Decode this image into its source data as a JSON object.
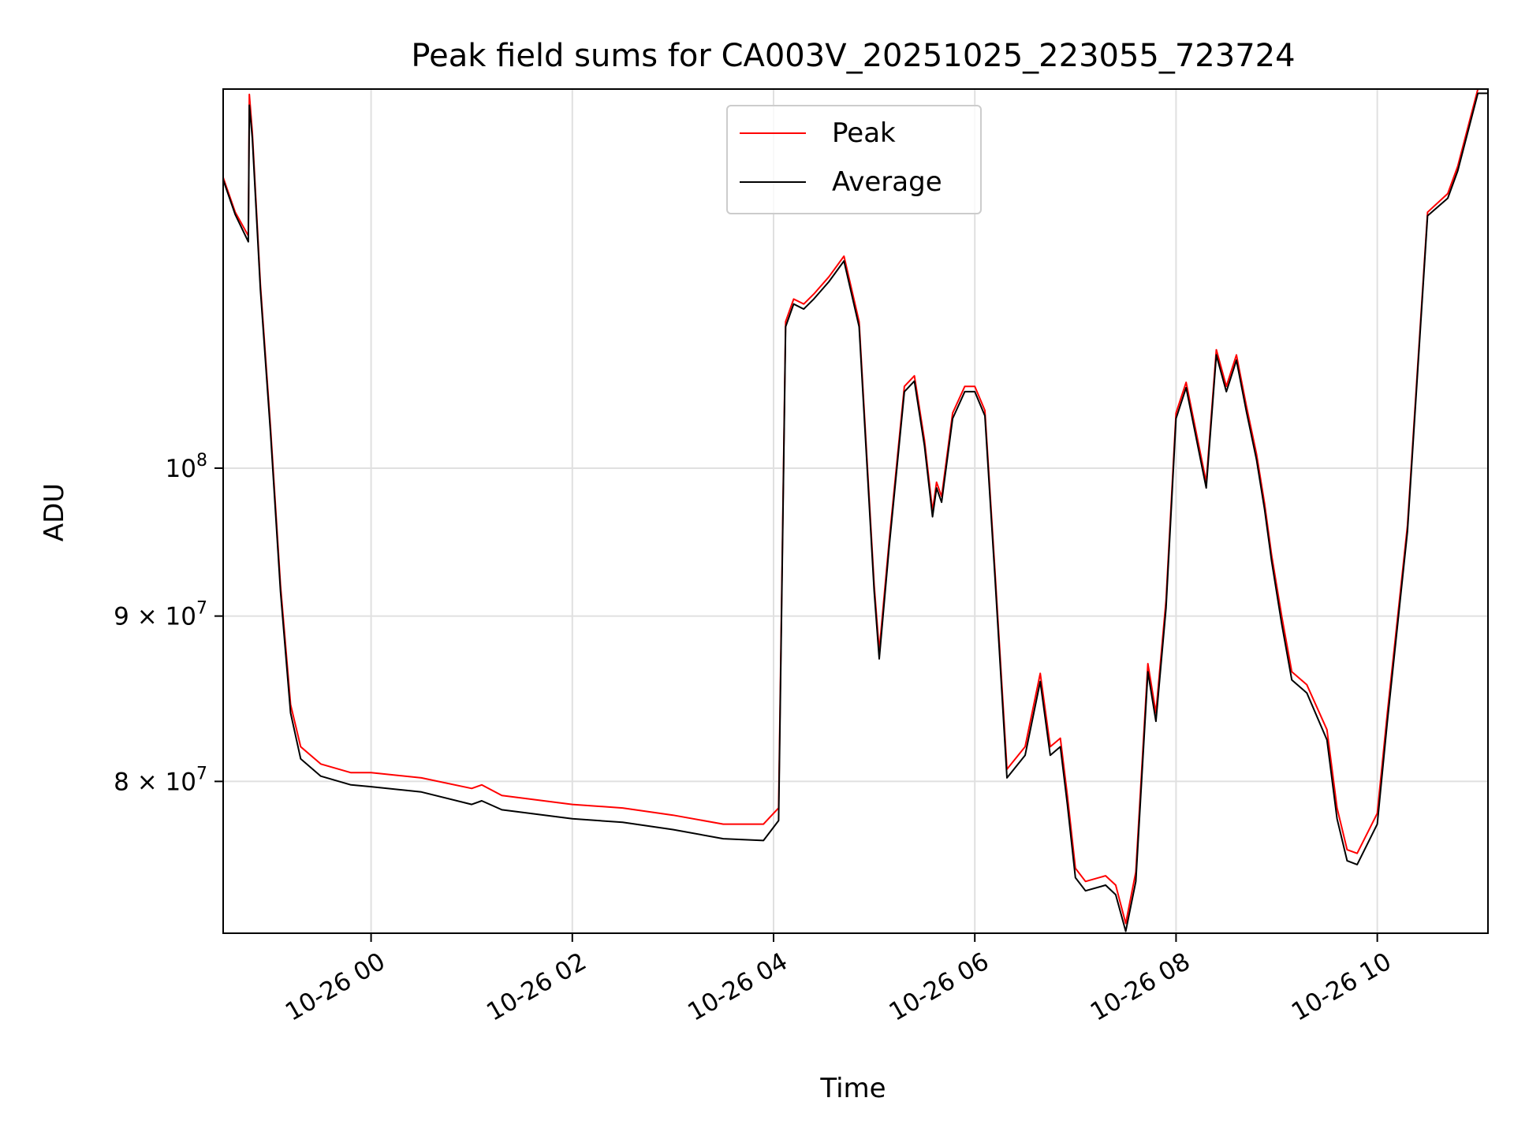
{
  "chart_data": {
    "type": "line",
    "title": "Peak field sums for CA003V_20251025_223055_723724",
    "xlabel": "Time",
    "ylabel": "ADU",
    "yscale": "log",
    "x_unit": "hours since 2025-10-25 00:00",
    "xlim": [
      22.53,
      35.1
    ],
    "ylim": [
      71800000,
      131000000
    ],
    "grid": true,
    "legend_position": "upper center",
    "x_ticks": [
      {
        "value": 24,
        "label": "10-26 00"
      },
      {
        "value": 26,
        "label": "10-26 02"
      },
      {
        "value": 28,
        "label": "10-26 04"
      },
      {
        "value": 30,
        "label": "10-26 06"
      },
      {
        "value": 32,
        "label": "10-26 08"
      },
      {
        "value": 34,
        "label": "10-26 10"
      }
    ],
    "y_ticks": [
      {
        "value": 80000000,
        "mantissa": "8",
        "exp": "7"
      },
      {
        "value": 90000000,
        "mantissa": "9",
        "exp": "7"
      },
      {
        "value": 100000000,
        "mantissa": "",
        "exp": "8"
      }
    ],
    "x": [
      22.53,
      22.65,
      22.78,
      22.79,
      22.82,
      22.9,
      23.0,
      23.1,
      23.2,
      23.3,
      23.5,
      23.8,
      24.0,
      24.5,
      25.0,
      25.1,
      25.3,
      26.0,
      26.5,
      27.0,
      27.5,
      27.9,
      28.05,
      28.12,
      28.2,
      28.3,
      28.4,
      28.55,
      28.7,
      28.85,
      29.0,
      29.05,
      29.15,
      29.3,
      29.4,
      29.5,
      29.58,
      29.62,
      29.67,
      29.78,
      29.9,
      30.0,
      30.1,
      30.2,
      30.32,
      30.5,
      30.65,
      30.75,
      30.85,
      30.92,
      31.0,
      31.1,
      31.3,
      31.4,
      31.5,
      31.6,
      31.72,
      31.8,
      31.9,
      32.0,
      32.1,
      32.3,
      32.4,
      32.5,
      32.6,
      32.7,
      32.8,
      32.88,
      32.95,
      33.05,
      33.15,
      33.3,
      33.5,
      33.6,
      33.7,
      33.8,
      34.0,
      34.1,
      34.3,
      34.5,
      34.7,
      34.8,
      35.0,
      35.1
    ],
    "series": [
      {
        "name": "Peak",
        "color": "#ff0000",
        "values": [
          123000000,
          120000000,
          118000000,
          130500000,
          127000000,
          114000000,
          103000000,
          92000000,
          84500000,
          82000000,
          81000000,
          80500000,
          80500000,
          80200000,
          79600000,
          79800000,
          79200000,
          78700000,
          78500000,
          78100000,
          77600000,
          77600000,
          78500000,
          111000000,
          112800000,
          112400000,
          113200000,
          114600000,
          116300000,
          111000000,
          92000000,
          87800000,
          95000000,
          106000000,
          106800000,
          102000000,
          97000000,
          99000000,
          98000000,
          104000000,
          106000000,
          106000000,
          104200000,
          93000000,
          80700000,
          82000000,
          86400000,
          82000000,
          82500000,
          79200000,
          75200000,
          74500000,
          74800000,
          74300000,
          72300000,
          75000000,
          87000000,
          84000000,
          91000000,
          104000000,
          106300000,
          99000000,
          108800000,
          106000000,
          108400000,
          104500000,
          101000000,
          97500000,
          94000000,
          90000000,
          86500000,
          85700000,
          83000000,
          78500000,
          76200000,
          76000000,
          78200000,
          84000000,
          96000000,
          120000000,
          121600000,
          124000000,
          131000000,
          131000000
        ]
      },
      {
        "name": "Average",
        "color": "#000000",
        "values": [
          122800000,
          119800000,
          117500000,
          129500000,
          126500000,
          113600000,
          102600000,
          91600000,
          84000000,
          81300000,
          80300000,
          79800000,
          79700000,
          79400000,
          78700000,
          78900000,
          78400000,
          77900000,
          77700000,
          77300000,
          76800000,
          76700000,
          77800000,
          110600000,
          112400000,
          112000000,
          112800000,
          114200000,
          115900000,
          110600000,
          91600000,
          87300000,
          94600000,
          105600000,
          106400000,
          101600000,
          96600000,
          98600000,
          97600000,
          103600000,
          105600000,
          105600000,
          103800000,
          92600000,
          80200000,
          81500000,
          85900000,
          81500000,
          82000000,
          78700000,
          74700000,
          74000000,
          74300000,
          73800000,
          71900000,
          74500000,
          86500000,
          83500000,
          90500000,
          103600000,
          105900000,
          98600000,
          108400000,
          105600000,
          108000000,
          104100000,
          100600000,
          97100000,
          93600000,
          89500000,
          86000000,
          85200000,
          82400000,
          77900000,
          75600000,
          75400000,
          77600000,
          83500000,
          95600000,
          119700000,
          121200000,
          123600000,
          130600000,
          130600000
        ]
      }
    ]
  }
}
